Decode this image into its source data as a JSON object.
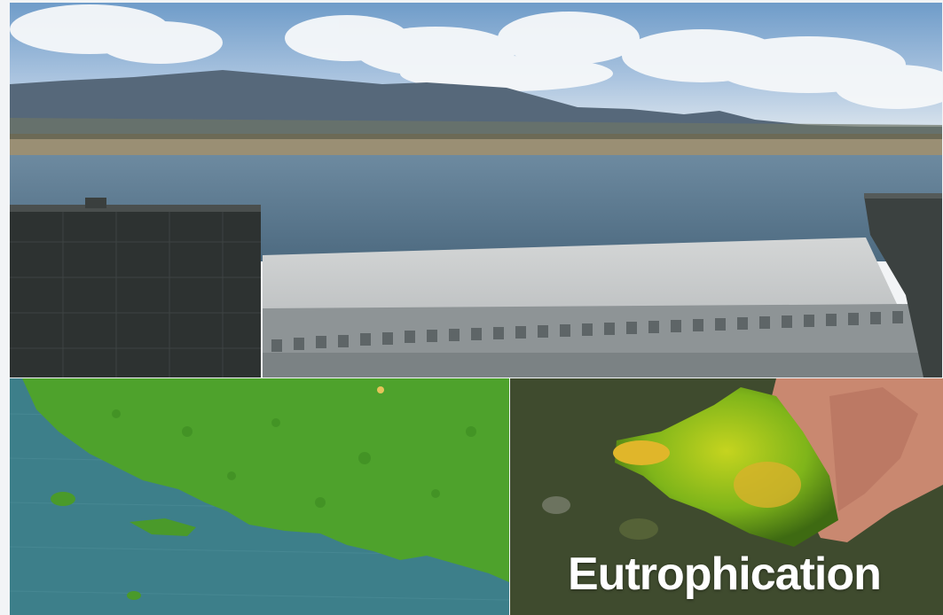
{
  "caption": {
    "text": "Eutrophication"
  },
  "panels": [
    {
      "id": "dam-photo",
      "subject": "dam-spillway-reservoir"
    },
    {
      "id": "hyacinth-photo",
      "subject": "water-hyacinth-cover"
    },
    {
      "id": "algae-photo",
      "subject": "hand-with-green-algae"
    }
  ],
  "colors": {
    "sky": "#7ea6cf",
    "water": "#5e7f93",
    "hyacinth": "#4fa02d",
    "algae": "#a8c21c"
  }
}
